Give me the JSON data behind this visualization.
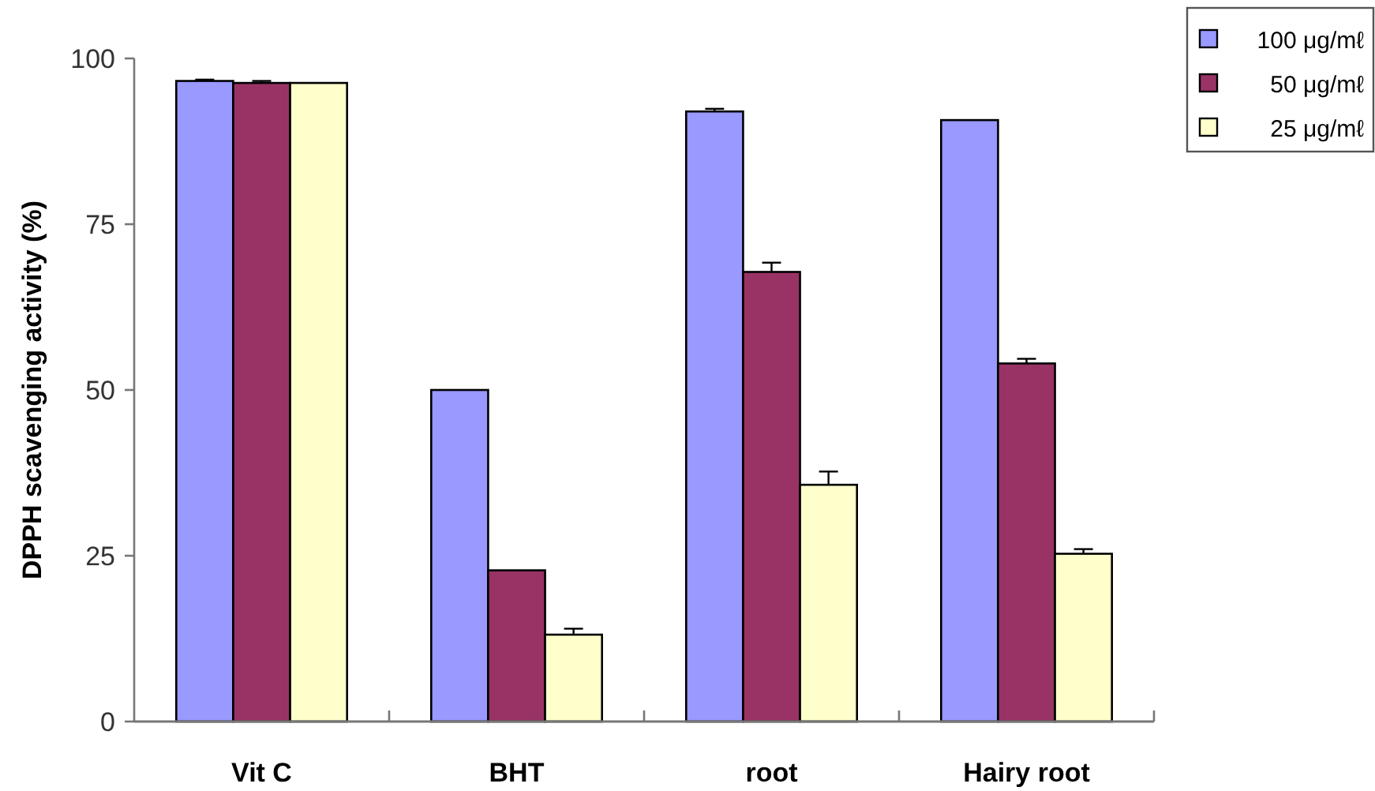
{
  "chart_data": {
    "type": "bar",
    "ylabel": "DPPH scavenging activity (%)",
    "categories": [
      "Vit C",
      "BHT",
      "root",
      "Hairy root"
    ],
    "series": [
      {
        "name": "100 μg/mℓ",
        "color": "#9999ff",
        "values": [
          96.6,
          50.0,
          92.0,
          90.7
        ],
        "errors": [
          0.2,
          null,
          0.4,
          null
        ]
      },
      {
        "name": "50 μg/mℓ",
        "color": "#993366",
        "values": [
          96.3,
          22.8,
          67.8,
          54.0
        ],
        "errors": [
          0.3,
          null,
          1.4,
          0.7
        ]
      },
      {
        "name": "25 μg/mℓ",
        "color": "#ffffcc",
        "values": [
          96.3,
          13.1,
          35.7,
          25.3
        ],
        "errors": [
          null,
          0.9,
          2.0,
          0.7
        ]
      }
    ],
    "ylim": [
      0,
      100
    ],
    "yticks": [
      0,
      25,
      50,
      75,
      100
    ],
    "grid": false,
    "legend": "top right"
  }
}
